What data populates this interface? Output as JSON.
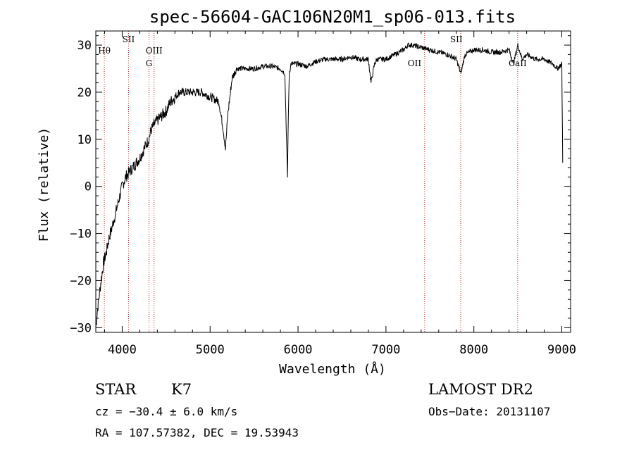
{
  "chart_data": {
    "type": "line",
    "title": "spec-56604-GAC106N20M1_sp06-013.fits",
    "xlabel": "Wavelength (Å)",
    "ylabel": "Flux (relative)",
    "xlim": [
      3700,
      9100
    ],
    "ylim": [
      -31,
      33
    ],
    "x_ticks": [
      4000,
      5000,
      6000,
      7000,
      8000,
      9000
    ],
    "y_ticks": [
      -30,
      -20,
      -10,
      0,
      10,
      20,
      30
    ],
    "grid": false,
    "series": [
      {
        "x": [
          3700,
          3720,
          3740,
          3760,
          3790,
          3820,
          3850,
          3880,
          3920,
          3960,
          4000,
          4040,
          4080,
          4120,
          4160,
          4200,
          4250,
          4300,
          4330,
          4360,
          4400,
          4450,
          4500,
          4550,
          4600,
          4650,
          4700,
          4800,
          4900,
          5000,
          5100,
          5150,
          5175,
          5200,
          5250,
          5300,
          5400,
          5500,
          5600,
          5700,
          5800,
          5850,
          5880,
          5890,
          5900,
          5920,
          6000,
          6100,
          6200,
          6300,
          6400,
          6500,
          6600,
          6700,
          6800,
          6830,
          6870,
          6900,
          7000,
          7100,
          7200,
          7250,
          7300,
          7400,
          7500,
          7600,
          7700,
          7800,
          7850,
          7900,
          8000,
          8100,
          8200,
          8300,
          8400,
          8450,
          8500,
          8550,
          8600,
          8700,
          8800,
          8900,
          8950,
          9000,
          9010
        ],
        "values": [
          -30,
          -26,
          -23,
          -20,
          -16,
          -14,
          -11,
          -9,
          -6,
          -3,
          0,
          2,
          3,
          4,
          5,
          6,
          8,
          10,
          12,
          13,
          14,
          15,
          16,
          18,
          19,
          20,
          20,
          20,
          20,
          19,
          18,
          12,
          8,
          15,
          23,
          25,
          25,
          25,
          25.5,
          25.5,
          25,
          24,
          2,
          15,
          24,
          26,
          26,
          25.5,
          26.5,
          27,
          27,
          27,
          27.5,
          27,
          27,
          22,
          26,
          27,
          27,
          28,
          29,
          30,
          30,
          29.5,
          29,
          28.5,
          28,
          27,
          24,
          28,
          29,
          29,
          28.5,
          28.5,
          29,
          26,
          30,
          27,
          28,
          27,
          27,
          26,
          25,
          26,
          5
        ]
      }
    ],
    "annotations": [
      {
        "label": "Hθ",
        "x": 3797
      },
      {
        "label": "SII",
        "x": 4072
      },
      {
        "label": "OIII",
        "x": 4363
      },
      {
        "label": "G",
        "x": 4305
      },
      {
        "label": "OII",
        "x": 7325
      },
      {
        "label": "SII",
        "x": 7800
      },
      {
        "label": "CaII",
        "x": 8498
      }
    ],
    "line_markers": [
      3797,
      4072,
      4305,
      4363,
      7440,
      7850,
      8498
    ]
  },
  "info": {
    "object_class": "STAR",
    "subclass": "K7",
    "survey": "LAMOST DR2",
    "redshift": "cz = −30.4 ± 6.0 km/s",
    "obs_date": "Obs−Date: 20131107",
    "coords": "RA = 107.57382, DEC =  19.53943"
  },
  "colors": {
    "spectrum": "#000000",
    "line_marker": "#b22222"
  }
}
